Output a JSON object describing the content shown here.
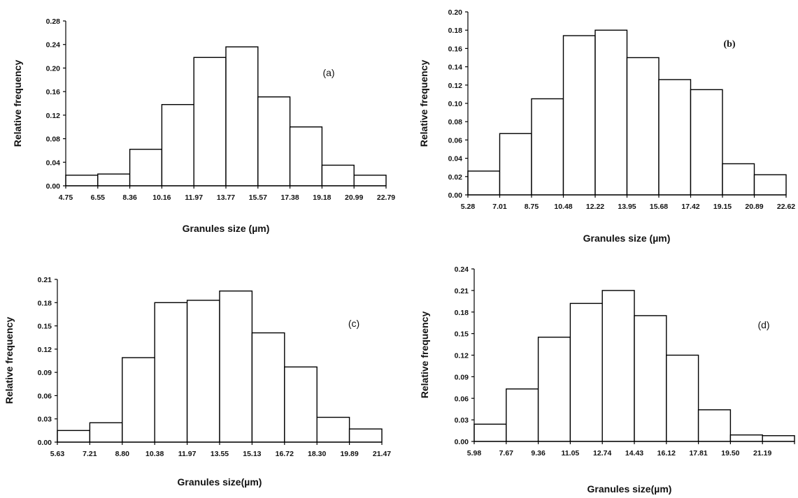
{
  "chart_data": [
    {
      "type": "bar",
      "panel_label": "(a)",
      "bin_edges": [
        "4.75",
        "6.55",
        "8.36",
        "10.16",
        "11.97",
        "13.77",
        "15.57",
        "17.38",
        "19.18",
        "20.99",
        "22.79"
      ],
      "values": [
        0.018,
        0.02,
        0.062,
        0.138,
        0.218,
        0.236,
        0.151,
        0.1,
        0.035,
        0.018
      ],
      "xlabel": "Granules size (µm)",
      "ylabel": "Relative frequency",
      "ylim": [
        0,
        0.28
      ],
      "yticks": [
        "0.00",
        "0.04",
        "0.08",
        "0.12",
        "0.16",
        "0.20",
        "0.24",
        "0.28"
      ]
    },
    {
      "type": "bar",
      "panel_label": "(b)",
      "bin_edges": [
        "5.28",
        "7.01",
        "8.75",
        "10.48",
        "12.22",
        "13.95",
        "15.68",
        "17.42",
        "19.15",
        "20.89",
        "22.62"
      ],
      "values": [
        0.026,
        0.067,
        0.105,
        0.174,
        0.18,
        0.15,
        0.126,
        0.115,
        0.034,
        0.022
      ],
      "xlabel": "Granules size (µm)",
      "ylabel": "Relative frequency",
      "ylim": [
        0,
        0.2
      ],
      "yticks": [
        "0.00",
        "0.02",
        "0.04",
        "0.06",
        "0.08",
        "0.10",
        "0.12",
        "0.14",
        "0.16",
        "0.18",
        "0.20"
      ]
    },
    {
      "type": "bar",
      "panel_label": "(c)",
      "bin_edges": [
        "5.63",
        "7.21",
        "8.80",
        "10.38",
        "11.97",
        "13.55",
        "15.13",
        "16.72",
        "18.30",
        "19.89",
        "21.47"
      ],
      "values": [
        0.015,
        0.025,
        0.109,
        0.18,
        0.183,
        0.195,
        0.141,
        0.097,
        0.032,
        0.017
      ],
      "xlabel": "Granules size(µm)",
      "ylabel": "Relative  frequency",
      "ylim": [
        0,
        0.21
      ],
      "yticks": [
        "0.00",
        "0.03",
        "0.06",
        "0.09",
        "0.12",
        "0.15",
        "0.18",
        "0.21"
      ]
    },
    {
      "type": "bar",
      "panel_label": "(d)",
      "bin_edges": [
        "5.98",
        "7.67",
        "9.36",
        "11.05",
        "12.74",
        "14.43",
        "16.12",
        "17.81",
        "19.50",
        "21.19",
        ""
      ],
      "values": [
        0.024,
        0.073,
        0.145,
        0.192,
        0.21,
        0.175,
        0.12,
        0.044,
        0.009,
        0.008
      ],
      "xlabel": "Granules size(µm)",
      "ylabel": "Relative frequency",
      "ylim": [
        0,
        0.24
      ],
      "yticks": [
        "0.00",
        "0.03",
        "0.06",
        "0.09",
        "0.12",
        "0.15",
        "0.18",
        "0.21",
        "0.24"
      ]
    }
  ]
}
